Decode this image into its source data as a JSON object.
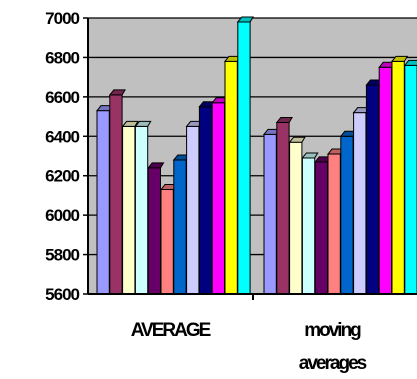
{
  "chart_data": {
    "type": "bar",
    "title": "",
    "xlabel": "",
    "ylabel": "",
    "ylim": [
      5600,
      7000
    ],
    "yticks": [
      "5600",
      "5800",
      "6000",
      "6200",
      "6400",
      "6600",
      "6800",
      "7000"
    ],
    "grid": true,
    "legend": "none",
    "plot_background": "#c0c0c0",
    "categories": [
      "AVERAGE",
      "moving averages"
    ],
    "category_label_lines": [
      [
        "AVERAGE"
      ],
      [
        "moving",
        "averages"
      ]
    ],
    "series": [
      {
        "color": "#9999ff",
        "values": [
          6530,
          6410
        ]
      },
      {
        "color": "#993366",
        "values": [
          6610,
          6470
        ]
      },
      {
        "color": "#ffffcc",
        "values": [
          6450,
          6370
        ]
      },
      {
        "color": "#ccffff",
        "values": [
          6450,
          6290
        ]
      },
      {
        "color": "#660066",
        "values": [
          6240,
          6270
        ]
      },
      {
        "color": "#ff8080",
        "values": [
          6130,
          6310
        ]
      },
      {
        "color": "#0066cc",
        "values": [
          6280,
          6400
        ]
      },
      {
        "color": "#ccccff",
        "values": [
          6450,
          6520
        ]
      },
      {
        "color": "#000080",
        "values": [
          6550,
          6660
        ]
      },
      {
        "color": "#ff00ff",
        "values": [
          6570,
          6750
        ]
      },
      {
        "color": "#ffff00",
        "values": [
          6780,
          6780
        ]
      },
      {
        "color": "#00ffff",
        "values": [
          6980,
          6760
        ]
      }
    ]
  }
}
